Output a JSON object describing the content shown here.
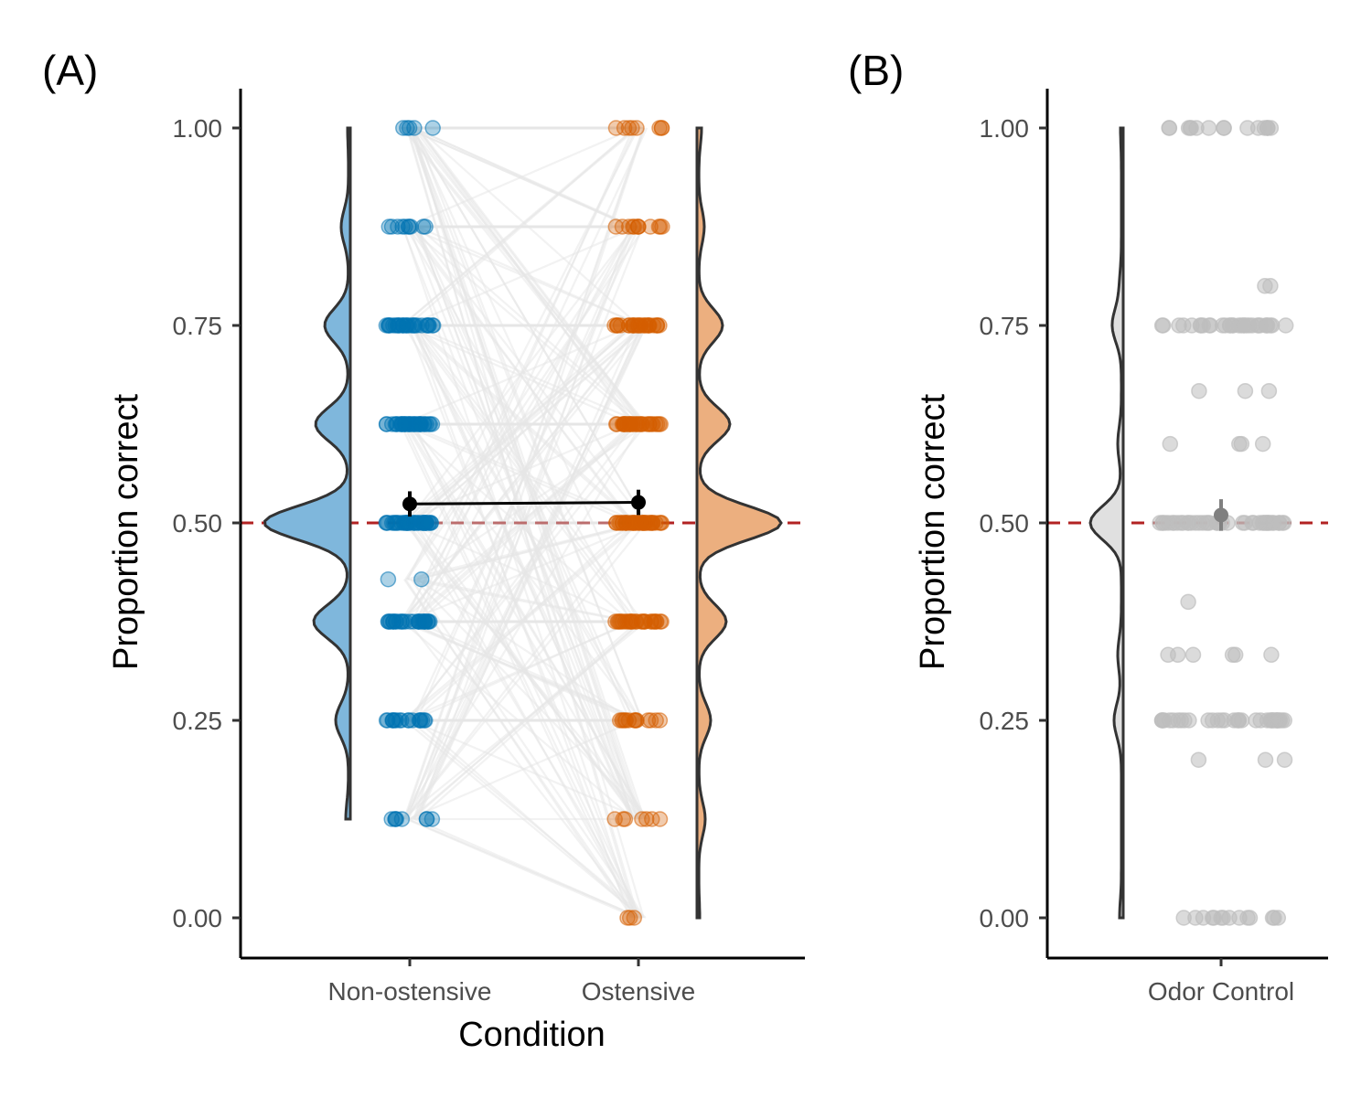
{
  "panels": {
    "a": {
      "tag": "(A)"
    },
    "b": {
      "tag": "(B)"
    }
  },
  "colors": {
    "non_ostensive": "#0072B2",
    "non_ostensive_fill": "#7fb7dc",
    "ostensive": "#D55E00",
    "ostensive_fill": "#ecaf7f",
    "odor_points": "#bdbdbd",
    "odor_fill": "#e0e0e0",
    "chance_line": "#b22222",
    "pair_lines": "#c8c8c8",
    "mean_marker": "#000000",
    "odor_mean_marker": "#808080"
  },
  "chart_data": [
    {
      "type": "scatter",
      "panel": "A",
      "xlabel": "Condition",
      "ylabel": "Proportion correct",
      "categories": [
        "Non-ostensive",
        "Ostensive"
      ],
      "ylim": [
        -0.05,
        1.05
      ],
      "yticks": [
        0.0,
        0.25,
        0.5,
        0.75,
        1.0
      ],
      "ytick_labels": [
        "0.00",
        "0.25",
        "0.50",
        "0.75",
        "1.00"
      ],
      "reference_line": {
        "y": 0.5,
        "style": "dashed"
      },
      "series": [
        {
          "key": "non_ostensive",
          "values": [
            0.125,
            0.25,
            0.375,
            0.4286,
            0.5,
            0.625,
            0.75,
            0.875,
            1.0
          ],
          "density_peaks": [
            0.5,
            0.625,
            0.375,
            0.75
          ],
          "mean": 0.524,
          "ci": [
            0.508,
            0.54
          ]
        },
        {
          "key": "ostensive",
          "values": [
            0.0,
            0.125,
            0.25,
            0.375,
            0.5,
            0.625,
            0.75,
            0.875,
            1.0
          ],
          "density_peaks": [
            0.5,
            0.625,
            0.375,
            0.75
          ],
          "mean": 0.526,
          "ci": [
            0.51,
            0.542
          ]
        }
      ],
      "grid": false,
      "legend": "none"
    },
    {
      "type": "scatter",
      "panel": "B",
      "xlabel": "",
      "ylabel": "Proportion correct",
      "categories": [
        "Odor Control"
      ],
      "ylim": [
        -0.05,
        1.05
      ],
      "yticks": [
        0.0,
        0.25,
        0.5,
        0.75,
        1.0
      ],
      "ytick_labels": [
        "0.00",
        "0.25",
        "0.50",
        "0.75",
        "1.00"
      ],
      "reference_line": {
        "y": 0.5,
        "style": "dashed"
      },
      "series": [
        {
          "key": "odor_control",
          "values": [
            0.0,
            0.2,
            0.25,
            0.333,
            0.4,
            0.5,
            0.6,
            0.667,
            0.75,
            0.8,
            1.0
          ],
          "mean": 0.51,
          "ci": [
            0.49,
            0.53
          ]
        }
      ],
      "grid": false,
      "legend": "none"
    }
  ]
}
